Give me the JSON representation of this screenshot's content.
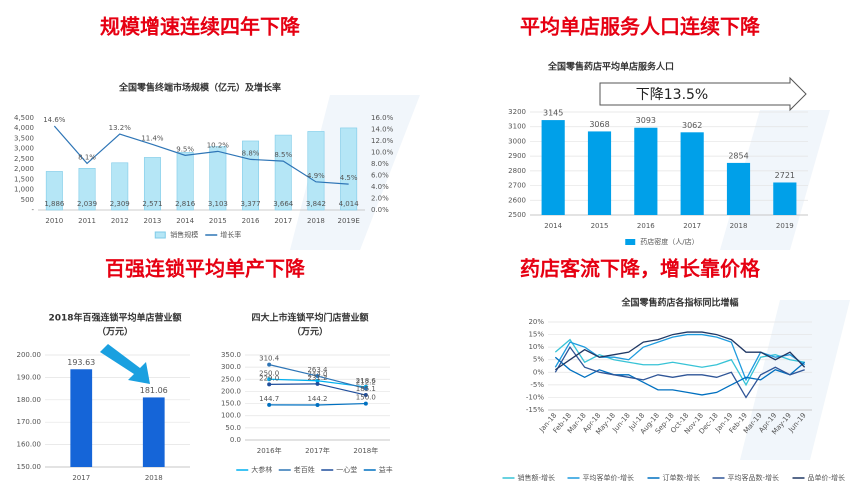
{
  "headings": [
    "规模增速连续四年下降",
    "平均单店服务人口连续下降",
    "百强连锁平均单产下降",
    "药店客流下降，增长靠价格"
  ],
  "chart_data": [
    {
      "type": "combo",
      "title": "全国零售终端市场规模（亿元）及增长率",
      "categories": [
        "2010",
        "2011",
        "2012",
        "2013",
        "2014",
        "2015",
        "2016",
        "2017",
        "2018",
        "2019E"
      ],
      "series": [
        {
          "name": "销售规模",
          "type": "bar",
          "color": "#b5e6f6",
          "values": [
            1886,
            2039,
            2309,
            2571,
            2816,
            3103,
            3377,
            3664,
            3842,
            4014
          ],
          "value_labels": [
            "1,886",
            "2,039",
            "2,309",
            "2,571",
            "2,816",
            "3,103",
            "3,377",
            "3,664",
            "3,842",
            "4,014"
          ]
        },
        {
          "name": "增长率",
          "type": "line",
          "axis": "y2",
          "color": "#2e75b6",
          "values": [
            14.6,
            8.1,
            13.2,
            11.4,
            9.5,
            10.2,
            8.8,
            8.5,
            4.9,
            4.5
          ],
          "value_labels": [
            "14.6%",
            "8.1%",
            "13.2%",
            "11.4%",
            "9.5%",
            "10.2%",
            "8.8%",
            "8.5%",
            "4.9%",
            "4.5%"
          ]
        }
      ],
      "ylim": [
        0,
        4500
      ],
      "yticks": [
        {
          "value": 0,
          "label": "-"
        },
        500,
        {
          "value": 1000,
          "label": "1,000"
        },
        {
          "value": 1500,
          "label": "1,500"
        },
        {
          "value": 2000,
          "label": "2,000"
        },
        {
          "value": 2500,
          "label": "2,500"
        },
        {
          "value": 3000,
          "label": "3,000"
        },
        {
          "value": 3500,
          "label": "3,500"
        },
        {
          "value": 4000,
          "label": "4,000"
        },
        {
          "value": 4500,
          "label": "4,500"
        }
      ],
      "y2lim": [
        0,
        16
      ],
      "y2ticks": [
        {
          "value": 0,
          "label": "0.0%"
        },
        {
          "value": 2,
          "label": "2.0%"
        },
        {
          "value": 4,
          "label": "4.0%"
        },
        {
          "value": 6,
          "label": "6.0%"
        },
        {
          "value": 8,
          "label": "8.0%"
        },
        {
          "value": 10,
          "label": "10.0%"
        },
        {
          "value": 12,
          "label": "12.0%"
        },
        {
          "value": 14,
          "label": "14.0%"
        },
        {
          "value": 16,
          "label": "16.0%"
        }
      ],
      "grid": false
    },
    {
      "type": "bar",
      "title": "全国零售药店平均单店服务人口",
      "categories": [
        "2014",
        "2015",
        "2016",
        "2017",
        "2018",
        "2019"
      ],
      "series": [
        {
          "name": "药店密度（人/店）",
          "type": "bar",
          "color": "#00a0e9",
          "values": [
            3145,
            3068,
            3093,
            3062,
            2854,
            2721
          ]
        }
      ],
      "ylim": [
        2500,
        3200
      ],
      "yticks": [
        2500,
        2600,
        2700,
        2800,
        2900,
        3000,
        3100,
        3200
      ],
      "annotation": "下降13.5%",
      "data_labels": true,
      "grid": true
    },
    {
      "type": "bar",
      "title": [
        "2018年百强连锁平均单店营业额",
        "（万元）"
      ],
      "categories": [
        "2017",
        "2018"
      ],
      "values": [
        193.63,
        181.06
      ],
      "color": "#1565d8",
      "ylim": [
        150,
        200
      ],
      "yticks": [
        {
          "value": 150,
          "label": "150.00"
        },
        {
          "value": 160,
          "label": "160.00"
        },
        {
          "value": 170,
          "label": "170.00"
        },
        {
          "value": 180,
          "label": "180.00"
        },
        {
          "value": 190,
          "label": "190.00"
        },
        {
          "value": 200,
          "label": "200.00"
        }
      ],
      "data_labels": true,
      "grid": true
    },
    {
      "type": "line",
      "title": [
        "四大上市连锁平均门店营业额",
        "（万元）"
      ],
      "categories": [
        "2016年",
        "2017年",
        "2018年"
      ],
      "series": [
        {
          "name": "大参林",
          "color": "#00b0f0",
          "values": [
            250.0,
            244.0,
            218.6
          ],
          "value_labels": [
            "250.0",
            "244.0",
            "218.6"
          ]
        },
        {
          "name": "老百姓",
          "color": "#2e75b6",
          "values": [
            310.4,
            263.4,
            212.2
          ],
          "value_labels": [
            "310.4",
            "263.4",
            "212.2"
          ]
        },
        {
          "name": "一心堂",
          "color": "#1f4e9c",
          "values": [
            229.0,
            231.2,
            185.1
          ],
          "value_labels": [
            "229.0",
            "231.2",
            "185.1"
          ]
        },
        {
          "name": "益丰",
          "color": "#0070c0",
          "values": [
            144.7,
            144.2,
            150.0
          ],
          "value_labels": [
            "144.7",
            "144.2",
            "150.0"
          ]
        }
      ],
      "ylim": [
        0,
        350
      ],
      "yticks": [
        {
          "value": 0,
          "label": "0.0"
        },
        {
          "value": 50,
          "label": "50.0"
        },
        {
          "value": 100,
          "label": "100.0"
        },
        {
          "value": 150,
          "label": "150.0"
        },
        {
          "value": 200,
          "label": "200.0"
        },
        {
          "value": 250,
          "label": "250.0"
        },
        {
          "value": 300,
          "label": "300.0"
        },
        {
          "value": 350,
          "label": "350.0"
        }
      ],
      "grid": true
    },
    {
      "type": "line",
      "title": "全国零售药店各指标同比增幅",
      "categories": [
        "Jan-18",
        "Feb-18",
        "Mar-18",
        "Apr-18",
        "May-18",
        "Jun-18",
        "Jul-18",
        "Aug-18",
        "Sep-18",
        "Oct-18",
        "Nov-18",
        "Dec-18",
        "Jan-19",
        "Feb-19",
        "Mar-19",
        "Apr-19",
        "May-19",
        "Jun-19"
      ],
      "series": [
        {
          "name": "销售额-增长",
          "color": "#37c3d6",
          "values": [
            8,
            13,
            4,
            7,
            5,
            4,
            3,
            3,
            4,
            3,
            2,
            3,
            5,
            -5,
            6,
            7,
            5,
            4
          ]
        },
        {
          "name": "平均客单价-增长",
          "color": "#1f9bde",
          "values": [
            2,
            12,
            10,
            6,
            6,
            5,
            10,
            12,
            14,
            15,
            15,
            14,
            12,
            -3,
            8,
            6,
            7,
            3
          ]
        },
        {
          "name": "订单数-增长",
          "color": "#0070c0",
          "values": [
            6,
            1,
            -2,
            1,
            -1,
            -1,
            -4,
            -7,
            -7,
            -8,
            -9,
            -8,
            -5,
            -2,
            -3,
            1,
            -1,
            4
          ]
        },
        {
          "name": "平均客品数-增长",
          "color": "#2f5597",
          "values": [
            0,
            10,
            2,
            0,
            -1,
            -2,
            -3,
            -1,
            -2,
            -1,
            -1,
            -2,
            0,
            -10,
            -1,
            2,
            -1,
            1
          ]
        },
        {
          "name": "品单价-增长",
          "color": "#203864",
          "values": [
            1,
            5,
            9,
            6,
            7,
            8,
            12,
            13,
            15,
            16,
            16,
            15,
            13,
            8,
            8,
            5,
            8,
            2
          ]
        }
      ],
      "ylim": [
        -15,
        20
      ],
      "yticks": [
        {
          "value": -15,
          "label": "-15%"
        },
        {
          "value": -10,
          "label": "-10%"
        },
        {
          "value": -5,
          "label": "-5%"
        },
        {
          "value": 0,
          "label": "0%"
        },
        {
          "value": 5,
          "label": "5%"
        },
        {
          "value": 10,
          "label": "10%"
        },
        {
          "value": 15,
          "label": "15%"
        },
        {
          "value": 20,
          "label": "20%"
        }
      ],
      "grid": true
    }
  ]
}
